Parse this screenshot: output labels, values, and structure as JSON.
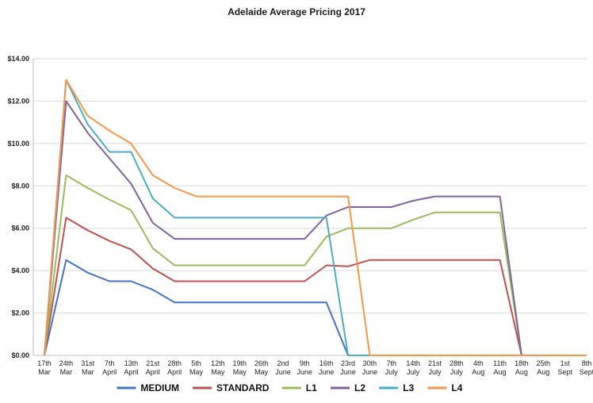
{
  "chart_data": {
    "type": "line",
    "title": "Adelaide Average Pricing 2017",
    "xlabel": "",
    "ylabel": "",
    "ylim": [
      0,
      14
    ],
    "yticks": [
      "$0.00",
      "$2.00",
      "$4.00",
      "$6.00",
      "$8.00",
      "$10.00",
      "$12.00",
      "$14.00"
    ],
    "grid": true,
    "legend_position": "bottom",
    "categories": [
      [
        "17th",
        "Mar"
      ],
      [
        "24th",
        "Mar"
      ],
      [
        "31st",
        "Mar"
      ],
      [
        "7th",
        "April"
      ],
      [
        "13th",
        "April"
      ],
      [
        "21st",
        "April"
      ],
      [
        "28th",
        "April"
      ],
      [
        "5th",
        "May"
      ],
      [
        "12th",
        "May"
      ],
      [
        "19th",
        "May"
      ],
      [
        "26th",
        "May"
      ],
      [
        "2nd",
        "June"
      ],
      [
        "9th",
        "June"
      ],
      [
        "16th",
        "June"
      ],
      [
        "23rd",
        "June"
      ],
      [
        "30th",
        "June"
      ],
      [
        "7th",
        "July"
      ],
      [
        "14th",
        "July"
      ],
      [
        "21st",
        "July"
      ],
      [
        "28th",
        "July"
      ],
      [
        "4th",
        "Aug"
      ],
      [
        "11th",
        "Aug"
      ],
      [
        "18th",
        "Aug"
      ],
      [
        "25th",
        "Aug"
      ],
      [
        "1st",
        "Sept"
      ],
      [
        "8th",
        "Sept"
      ]
    ],
    "series": [
      {
        "name": "MEDIUM",
        "color": "#4472c4",
        "values": [
          0,
          4.5,
          3.9,
          3.5,
          3.5,
          3.1,
          2.5,
          2.5,
          2.5,
          2.5,
          2.5,
          2.5,
          2.5,
          2.5,
          0,
          0,
          0,
          0,
          0,
          0,
          0,
          0,
          0,
          0,
          0,
          0
        ]
      },
      {
        "name": "STANDARD",
        "color": "#c0504d",
        "values": [
          0,
          6.5,
          5.9,
          5.4,
          5.0,
          4.1,
          3.5,
          3.5,
          3.5,
          3.5,
          3.5,
          3.5,
          3.5,
          4.25,
          4.2,
          4.5,
          4.5,
          4.5,
          4.5,
          4.5,
          4.5,
          4.5,
          0,
          0,
          0,
          0
        ]
      },
      {
        "name": "L1",
        "color": "#9bbb59",
        "values": [
          0,
          8.5,
          7.9,
          7.35,
          6.85,
          5.05,
          4.25,
          4.25,
          4.25,
          4.25,
          4.25,
          4.25,
          4.25,
          5.6,
          6.0,
          6.0,
          6.0,
          6.4,
          6.75,
          6.75,
          6.75,
          6.75,
          0,
          0,
          0,
          0
        ]
      },
      {
        "name": "L2",
        "color": "#8064a2",
        "values": [
          0,
          12.0,
          10.5,
          9.3,
          8.1,
          6.25,
          5.5,
          5.5,
          5.5,
          5.5,
          5.5,
          5.5,
          5.5,
          6.6,
          7.0,
          7.0,
          7.0,
          7.3,
          7.5,
          7.5,
          7.5,
          7.5,
          0,
          0,
          0,
          0
        ]
      },
      {
        "name": "L3",
        "color": "#4bacc6",
        "values": [
          0,
          13.0,
          10.9,
          9.6,
          9.6,
          7.4,
          6.5,
          6.5,
          6.5,
          6.5,
          6.5,
          6.5,
          6.5,
          6.5,
          0,
          0,
          0,
          0,
          0,
          0,
          0,
          0,
          0,
          0,
          0,
          0
        ]
      },
      {
        "name": "L4",
        "color": "#f79646",
        "values": [
          0,
          13.0,
          11.3,
          10.6,
          10.0,
          8.5,
          7.9,
          7.5,
          7.5,
          7.5,
          7.5,
          7.5,
          7.5,
          7.5,
          7.5,
          0,
          0,
          0,
          0,
          0,
          0,
          0,
          0,
          0,
          0,
          0
        ]
      }
    ]
  }
}
